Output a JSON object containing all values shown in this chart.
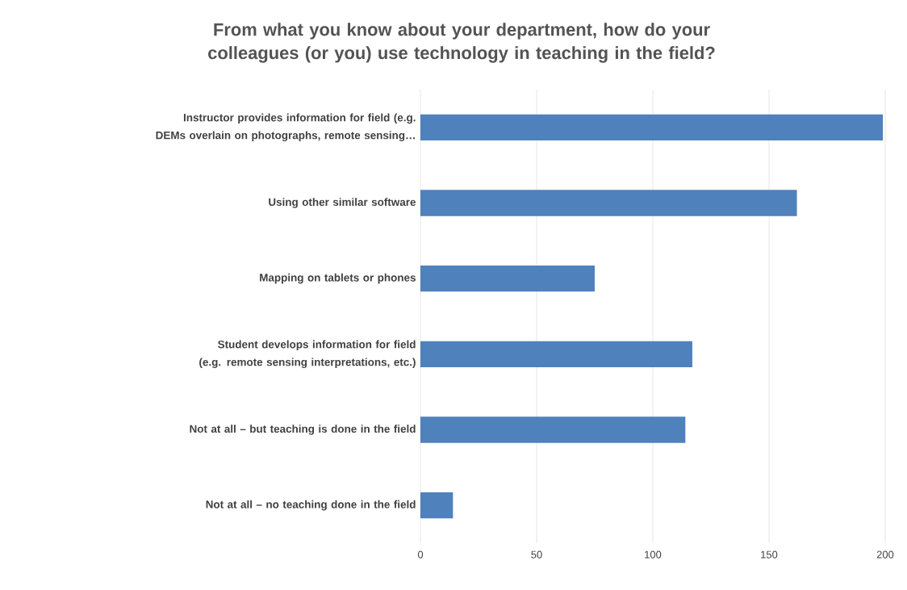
{
  "chart_data": {
    "type": "bar",
    "orientation": "horizontal",
    "title": "From what you know about your department, how do your colleagues (or you) use technology in teaching in the field?",
    "categories": [
      "Instructor provides information for field (e.g. DEMs overlain on photographs, remote sensing…",
      "Using other similar software",
      "Mapping on tablets or phones",
      "Student develops information for field (e.g. remote sensing interpretations, etc.)",
      "Not at all – but teaching is done in the field",
      "Not at all – no teaching done in the field"
    ],
    "values": [
      199,
      162,
      75,
      117,
      114,
      14
    ],
    "color": "#4f81bd",
    "xlim": [
      0,
      200
    ],
    "xticks": [
      0,
      50,
      100,
      150,
      200
    ],
    "grid": "x"
  }
}
